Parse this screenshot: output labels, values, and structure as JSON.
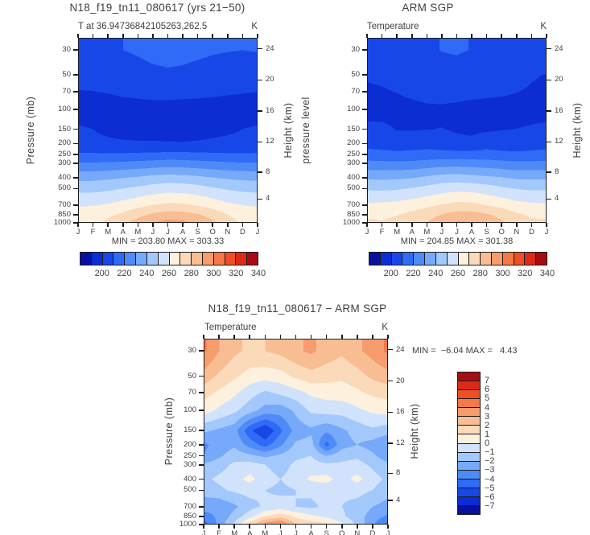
{
  "background": "#ffffff",
  "text_color": "#3f3f3f",
  "axis_color": "#1c1c1c",
  "palette": [
    "#07119e",
    "#0b2dd1",
    "#1847e8",
    "#2f6bf6",
    "#4f8bf8",
    "#77a9fa",
    "#a3c8fb",
    "#d1e3fc",
    "#fdf0dd",
    "#fbdaba",
    "#f9bd94",
    "#f79c6c",
    "#f57847",
    "#ef4f26",
    "#d92b16",
    "#a60d12"
  ],
  "months": [
    "J",
    "F",
    "M",
    "A",
    "M",
    "J",
    "J",
    "A",
    "S",
    "O",
    "N",
    "D",
    "J"
  ],
  "pressure_ticks": [
    30,
    50,
    70,
    100,
    150,
    200,
    250,
    300,
    400,
    500,
    700,
    850,
    1000
  ],
  "height_ticks": [
    24,
    20,
    16,
    12,
    8,
    4
  ],
  "panels": {
    "model": {
      "title": "N18_f19_tn11_080617 (yrs 21−50)",
      "subtitle": "T at 36.94736842105263,262.5",
      "units": "K",
      "ylabel": "Pressure (mb)",
      "y2label": "Height (km)",
      "minmax": "MIN = 203.80 MAX = 303.33",
      "colorbar_labels": [
        "200",
        "220",
        "240",
        "260",
        "280",
        "300",
        "320",
        "340"
      ]
    },
    "obs": {
      "title": "ARM SGP",
      "subtitle": "Temperature",
      "units": "K",
      "ylabel": "pressure level",
      "y2label": "Height (km)",
      "minmax": "MIN = 204.85 MAX = 301.38",
      "colorbar_labels": [
        "200",
        "220",
        "240",
        "260",
        "280",
        "300",
        "320",
        "340"
      ]
    },
    "diff": {
      "title": "N18_f19_tn11_080617 − ARM SGP",
      "subtitle": "Temperature",
      "units": "K",
      "ylabel": "Pressure (mb)",
      "y2label": "Height (km)",
      "minmax": "MIN =  −6.04 MAX =   4.43",
      "colorbar_labels": [
        "7",
        "6",
        "5",
        "4",
        "3",
        "2",
        "1",
        "0",
        "−1",
        "−2",
        "−3",
        "−4",
        "−5",
        "−6",
        "−7"
      ]
    }
  },
  "chart_data": [
    {
      "type": "heatmap",
      "style": "filled-contour",
      "panel": "model",
      "title": "N18_f19_tn11_080617 (yrs 21−50)",
      "xlabel": "month",
      "ylabel": "Pressure (mb)",
      "units": "K",
      "x_categories": [
        "J",
        "F",
        "M",
        "A",
        "M",
        "J",
        "J",
        "A",
        "S",
        "O",
        "N",
        "D",
        "J"
      ],
      "levels_mb": [
        30,
        50,
        70,
        100,
        150,
        200,
        250,
        300,
        400,
        500,
        700,
        850,
        1000
      ],
      "contour_levels": [
        190,
        200,
        210,
        220,
        230,
        240,
        250,
        260,
        270,
        280,
        290,
        300,
        310,
        320,
        330,
        340,
        350
      ],
      "min": 203.8,
      "max": 303.33,
      "values": [
        [
          218,
          218.5,
          219,
          220,
          221,
          222.5,
          223.5,
          223,
          222,
          221,
          220.5,
          220,
          220.5
        ],
        [
          214,
          214,
          215,
          216,
          217,
          218,
          218.5,
          218,
          217,
          216,
          215,
          214.5,
          214.5
        ],
        [
          209.5,
          209.8,
          210.5,
          212,
          213,
          214,
          214.5,
          214,
          213,
          212,
          211,
          210.5,
          210
        ],
        [
          206,
          206,
          205.5,
          205,
          205.5,
          205.5,
          205,
          204.5,
          205,
          205.5,
          206,
          206,
          206
        ],
        [
          211,
          210,
          207,
          204.5,
          203.8,
          206,
          206.5,
          206,
          206,
          207.5,
          208.5,
          210,
          211
        ],
        [
          213,
          213,
          212.5,
          212,
          211.5,
          211,
          210.5,
          210.5,
          211,
          211.5,
          212,
          212.5,
          213
        ],
        [
          221,
          221,
          221,
          221,
          221.5,
          222,
          222.5,
          222.5,
          222,
          221.5,
          221,
          221,
          221
        ],
        [
          231,
          231,
          231.5,
          232,
          233,
          234,
          235,
          234.5,
          233.5,
          232.5,
          231.5,
          231,
          231
        ],
        [
          247,
          247,
          248,
          249.5,
          251,
          253,
          254,
          253.5,
          252,
          250,
          248.5,
          247.5,
          247
        ],
        [
          257,
          257,
          258,
          260,
          262,
          264.5,
          266,
          265.5,
          264,
          261,
          259,
          257.5,
          257
        ],
        [
          269,
          269.5,
          271,
          274,
          277,
          280,
          282,
          281.5,
          279,
          276,
          272,
          270,
          269
        ],
        [
          275,
          275.5,
          278,
          282,
          287,
          292,
          294.5,
          294,
          291,
          286,
          280,
          276,
          275
        ],
        [
          277,
          278,
          282,
          288,
          294,
          300,
          303.3,
          302,
          298,
          292,
          284,
          279,
          277
        ]
      ]
    },
    {
      "type": "heatmap",
      "style": "filled-contour",
      "panel": "obs",
      "title": "ARM SGP",
      "xlabel": "month",
      "ylabel": "pressure level",
      "units": "K",
      "x_categories": [
        "J",
        "F",
        "M",
        "A",
        "M",
        "J",
        "J",
        "A",
        "S",
        "O",
        "N",
        "D",
        "J"
      ],
      "levels_mb": [
        30,
        50,
        70,
        100,
        150,
        200,
        250,
        300,
        400,
        500,
        700,
        850,
        1000
      ],
      "contour_levels": [
        190,
        200,
        210,
        220,
        230,
        240,
        250,
        260,
        270,
        280,
        290,
        300,
        310,
        320,
        330,
        340,
        350
      ],
      "min": 204.85,
      "max": 301.38,
      "values": [
        [
          213.8,
          215.5,
          216.8,
          218.2,
          219,
          220.2,
          220.7,
          219.8,
          219.4,
          218.8,
          217.7,
          216.6,
          216.3
        ],
        [
          211.4,
          212.2,
          213.8,
          215.4,
          216.6,
          217.4,
          217.3,
          216.4,
          215.6,
          214.8,
          213.4,
          210.8,
          209.6
        ],
        [
          208.1,
          209,
          210.3,
          212.6,
          214.2,
          214.8,
          214.9,
          213.8,
          212.6,
          211.5,
          210.2,
          209,
          208.2
        ],
        [
          205.6,
          206.2,
          206.3,
          206.6,
          207.9,
          208.1,
          206.8,
          205.3,
          205.6,
          206.1,
          206.2,
          205.8,
          205.6
        ],
        [
          212.8,
          212.2,
          209.6,
          209.3,
          209.8,
          210.2,
          209.1,
          208.2,
          208.8,
          209.7,
          210.1,
          211.2,
          212.6
        ],
        [
          216.2,
          215.6,
          214.7,
          215.4,
          215.9,
          214.2,
          212.3,
          212.1,
          215.4,
          213.9,
          214,
          214.9,
          216
        ],
        [
          224,
          223.2,
          222.4,
          222.8,
          223.7,
          223.8,
          223.7,
          223.5,
          224,
          222.9,
          222.2,
          222.8,
          223.6
        ],
        [
          232.8,
          232.4,
          232.3,
          232.6,
          234,
          235.4,
          235.8,
          235.1,
          234.3,
          233.3,
          232.1,
          232.2,
          232.8
        ],
        [
          248.2,
          247.8,
          248.4,
          249.2,
          251.6,
          254,
          254.6,
          253.3,
          251.7,
          250.4,
          248.2,
          248.1,
          248.2
        ],
        [
          258.6,
          258.2,
          258.8,
          260.6,
          263,
          265.7,
          267,
          266.3,
          264.6,
          261.8,
          259.6,
          258.5,
          258.6
        ],
        [
          271.6,
          272.3,
          273.2,
          275.4,
          277.8,
          280.6,
          283,
          282.7,
          279.8,
          277,
          273.4,
          272,
          271.4
        ],
        [
          278.4,
          278.3,
          279.6,
          282.4,
          286,
          290.4,
          293.7,
          293.8,
          291.2,
          286.8,
          281.6,
          278.4,
          278.2
        ],
        [
          281.6,
          280.6,
          282.8,
          286.6,
          290.4,
          295.6,
          301.3,
          300.4,
          296.8,
          291.8,
          285.2,
          281.8,
          281.4
        ]
      ]
    },
    {
      "type": "heatmap",
      "style": "filled-contour",
      "panel": "diff",
      "title": "N18_f19_tn11_080617 − ARM SGP",
      "xlabel": "month",
      "ylabel": "Pressure (mb)",
      "units": "K",
      "x_categories": [
        "J",
        "F",
        "M",
        "A",
        "M",
        "J",
        "J",
        "A",
        "S",
        "O",
        "N",
        "D",
        "J"
      ],
      "levels_mb": [
        30,
        50,
        70,
        100,
        150,
        200,
        250,
        300,
        400,
        500,
        700,
        850,
        1000
      ],
      "contour_levels": [
        -8,
        -7,
        -6,
        -5,
        -4,
        -3,
        -2,
        -1,
        0,
        1,
        2,
        3,
        4,
        5,
        6,
        7,
        8
      ],
      "min": -6.04,
      "max": 4.43,
      "values": [
        [
          4.2,
          3,
          2.2,
          1.8,
          2,
          2.3,
          2.8,
          3.2,
          2.6,
          2.2,
          2.8,
          3.4,
          4.2
        ],
        [
          2.6,
          1.8,
          1.2,
          0.6,
          0.4,
          0.6,
          1.2,
          1.6,
          1.4,
          1.2,
          1.6,
          2.2,
          2.6
        ],
        [
          1.4,
          0.8,
          0.2,
          -0.6,
          -1.2,
          -0.8,
          -0.4,
          0.2,
          0.4,
          0.5,
          0.8,
          1.2,
          1.4
        ],
        [
          0.4,
          -0.2,
          -0.8,
          -1.6,
          -2.4,
          -2.6,
          -1.8,
          -0.8,
          -0.6,
          -0.6,
          -0.2,
          0.2,
          0.4
        ],
        [
          -1.8,
          -2.2,
          -2.6,
          -4.8,
          -6.04,
          -4.2,
          -2.6,
          -2.2,
          -2.8,
          -2.2,
          -1.6,
          -1.2,
          -1.6
        ],
        [
          -3.2,
          -2.6,
          -2.2,
          -3.4,
          -4.4,
          -3.2,
          -1.8,
          -1.6,
          -4.4,
          -2.4,
          -2,
          -2.4,
          -3
        ],
        [
          -3,
          -2.2,
          -1.4,
          -1.8,
          -2.2,
          -1.8,
          -1.2,
          -1,
          -2,
          -1.4,
          -1.2,
          -1.8,
          -2.6
        ],
        [
          -1.8,
          -1.4,
          -0.8,
          -0.6,
          -1,
          -1.4,
          -0.8,
          -0.6,
          -0.8,
          -0.8,
          -0.6,
          -1.2,
          -1.8
        ],
        [
          -1.2,
          -0.8,
          -0.4,
          0.3,
          -0.6,
          -1,
          -0.6,
          0.2,
          0.3,
          -0.4,
          0.3,
          -0.6,
          -1.2
        ],
        [
          -1.6,
          -1.2,
          -0.8,
          -0.6,
          -1,
          -1.2,
          -1,
          -0.8,
          -0.6,
          -0.8,
          -0.6,
          -1,
          -1.6
        ],
        [
          -2.6,
          -2.8,
          -2.2,
          -1.4,
          -0.8,
          -0.6,
          -1,
          -1.2,
          -0.8,
          -1,
          -1.4,
          -2,
          -2.4
        ],
        [
          -3.4,
          -2.8,
          -1.6,
          -0.4,
          1,
          1.6,
          0.8,
          0.2,
          -0.2,
          -0.8,
          -1.6,
          -2.4,
          -3.2
        ],
        [
          -4.6,
          -2.6,
          -0.8,
          1.4,
          3.6,
          4.4,
          2,
          1.6,
          1.2,
          0.2,
          -1.2,
          -2.8,
          -4.4
        ]
      ]
    }
  ]
}
